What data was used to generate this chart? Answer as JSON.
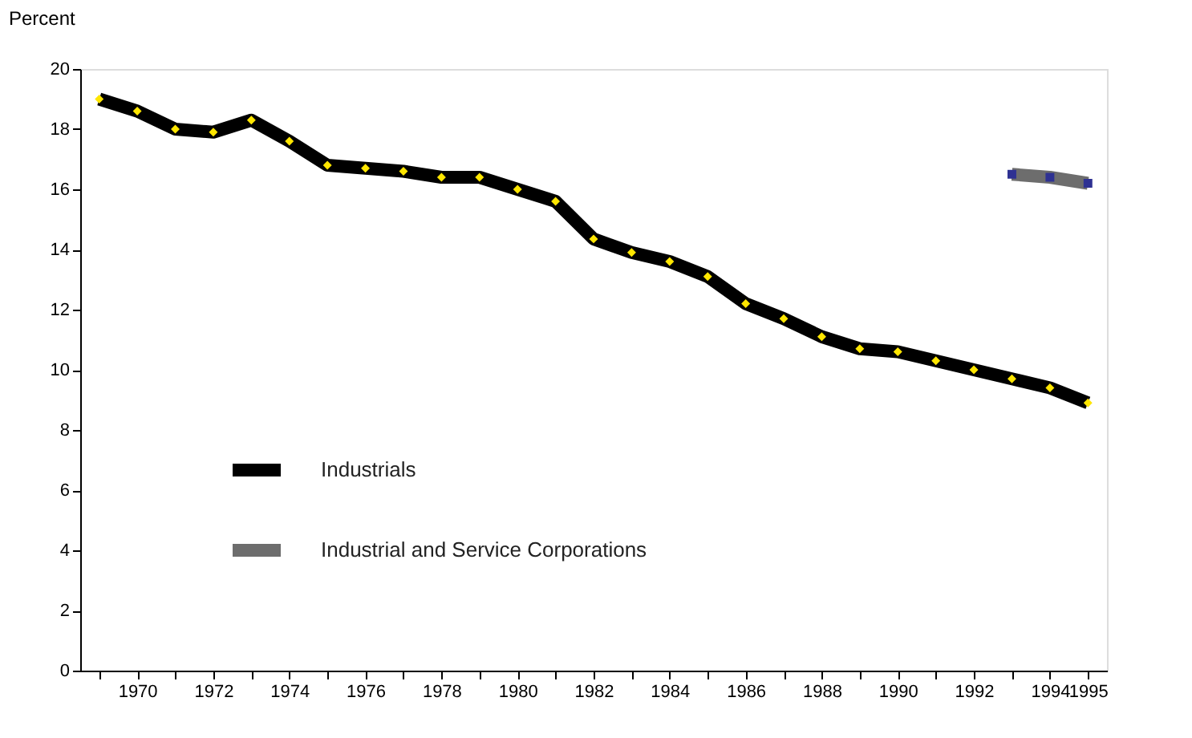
{
  "chart_data": {
    "type": "line",
    "ylabel": "Percent",
    "categories": [
      null,
      "1970",
      null,
      "1972",
      null,
      "1974",
      null,
      "1976",
      null,
      "1978",
      null,
      "1980",
      null,
      "1982",
      null,
      "1984",
      null,
      "1986",
      null,
      "1988",
      null,
      "1990",
      null,
      "1992",
      null,
      "1994",
      "1995"
    ],
    "series": [
      {
        "name": "Industrials",
        "color": "#000000",
        "marker": "diamond",
        "values": [
          19.0,
          18.6,
          18.0,
          17.9,
          18.3,
          17.6,
          16.8,
          16.7,
          16.6,
          16.4,
          16.4,
          16.0,
          15.6,
          14.35,
          13.9,
          13.6,
          13.1,
          12.2,
          11.7,
          11.1,
          10.7,
          10.6,
          10.3,
          10.0,
          9.7,
          9.4,
          8.9
        ]
      },
      {
        "name": "Industrial and Service Corporations",
        "color": "#6d6d6d",
        "marker": "square",
        "values": [
          null,
          null,
          null,
          null,
          null,
          null,
          null,
          null,
          null,
          null,
          null,
          null,
          null,
          null,
          null,
          null,
          null,
          null,
          null,
          null,
          null,
          null,
          null,
          null,
          16.5,
          16.4,
          16.2
        ]
      }
    ],
    "ylim": [
      0,
      20
    ],
    "yticks": [
      0,
      2,
      4,
      6,
      8,
      10,
      12,
      14,
      16,
      18,
      20
    ],
    "grid": false,
    "legend": "bottom left",
    "line_style": "solid"
  }
}
